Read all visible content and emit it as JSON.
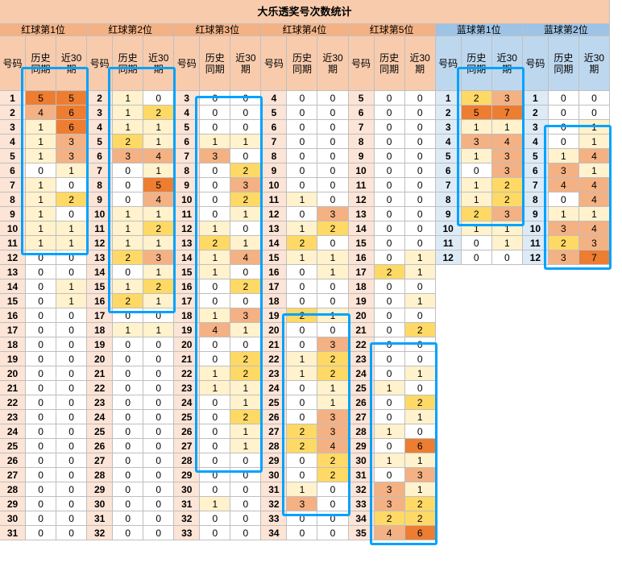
{
  "sheet": {
    "title": "大乐透奖号次数统计",
    "column_labels": {
      "number": "号码",
      "history": "历史\n同期",
      "recent": "近30\n期"
    }
  },
  "colors": {
    "border": "#bfbfbf",
    "title_bg": "#f8cbad",
    "red_group_header": "#f4b183",
    "red_sub_header": "#f8cbad",
    "red_number_bg": "#fce4d6",
    "blue_group_header": "#9dc3e6",
    "blue_sub_header": "#bdd7ee",
    "blue_number_bg": "#ddebf7",
    "heat": [
      "#ffffff",
      "#fff2cc",
      "#ffd966",
      "#f4b183",
      "#ed7d31"
    ],
    "highlight_box": "#00a2ff"
  },
  "groups": [
    {
      "name": "红球第1位",
      "kind": "red",
      "rows": [
        {
          "n": 1,
          "h": 5,
          "r": 5
        },
        {
          "n": 2,
          "h": 4,
          "r": 6
        },
        {
          "n": 3,
          "h": 1,
          "r": 6
        },
        {
          "n": 4,
          "h": 1,
          "r": 3
        },
        {
          "n": 5,
          "h": 1,
          "r": 3
        },
        {
          "n": 6,
          "h": 0,
          "r": 1
        },
        {
          "n": 7,
          "h": 1,
          "r": 0
        },
        {
          "n": 8,
          "h": 1,
          "r": 2
        },
        {
          "n": 9,
          "h": 1,
          "r": 0
        },
        {
          "n": 10,
          "h": 1,
          "r": 1
        },
        {
          "n": 11,
          "h": 1,
          "r": 1
        },
        {
          "n": 12,
          "h": 0,
          "r": 0
        },
        {
          "n": 13,
          "h": 0,
          "r": 0
        },
        {
          "n": 14,
          "h": 0,
          "r": 1
        },
        {
          "n": 15,
          "h": 0,
          "r": 1
        },
        {
          "n": 16,
          "h": 0,
          "r": 0
        },
        {
          "n": 17,
          "h": 0,
          "r": 0
        },
        {
          "n": 18,
          "h": 0,
          "r": 0
        },
        {
          "n": 19,
          "h": 0,
          "r": 0
        },
        {
          "n": 20,
          "h": 0,
          "r": 0
        },
        {
          "n": 21,
          "h": 0,
          "r": 0
        },
        {
          "n": 22,
          "h": 0,
          "r": 0
        },
        {
          "n": 23,
          "h": 0,
          "r": 0
        },
        {
          "n": 24,
          "h": 0,
          "r": 0
        },
        {
          "n": 25,
          "h": 0,
          "r": 0
        },
        {
          "n": 26,
          "h": 0,
          "r": 0
        },
        {
          "n": 27,
          "h": 0,
          "r": 0
        },
        {
          "n": 28,
          "h": 0,
          "r": 0
        },
        {
          "n": 29,
          "h": 0,
          "r": 0
        },
        {
          "n": 30,
          "h": 0,
          "r": 0
        },
        {
          "n": 31,
          "h": 0,
          "r": 0
        }
      ]
    },
    {
      "name": "红球第2位",
      "kind": "red",
      "rows": [
        {
          "n": 2,
          "h": 1,
          "r": 0
        },
        {
          "n": 3,
          "h": 1,
          "r": 2
        },
        {
          "n": 4,
          "h": 1,
          "r": 1
        },
        {
          "n": 5,
          "h": 2,
          "r": 1
        },
        {
          "n": 6,
          "h": 3,
          "r": 4
        },
        {
          "n": 7,
          "h": 0,
          "r": 1
        },
        {
          "n": 8,
          "h": 0,
          "r": 5
        },
        {
          "n": 9,
          "h": 0,
          "r": 4
        },
        {
          "n": 10,
          "h": 1,
          "r": 1
        },
        {
          "n": 11,
          "h": 1,
          "r": 2
        },
        {
          "n": 12,
          "h": 1,
          "r": 1
        },
        {
          "n": 13,
          "h": 2,
          "r": 3
        },
        {
          "n": 14,
          "h": 0,
          "r": 1
        },
        {
          "n": 15,
          "h": 1,
          "r": 2
        },
        {
          "n": 16,
          "h": 2,
          "r": 1
        },
        {
          "n": 17,
          "h": 0,
          "r": 0
        },
        {
          "n": 18,
          "h": 1,
          "r": 1
        },
        {
          "n": 19,
          "h": 0,
          "r": 0
        },
        {
          "n": 20,
          "h": 0,
          "r": 0
        },
        {
          "n": 21,
          "h": 0,
          "r": 0
        },
        {
          "n": 22,
          "h": 0,
          "r": 0
        },
        {
          "n": 23,
          "h": 0,
          "r": 0
        },
        {
          "n": 24,
          "h": 0,
          "r": 0
        },
        {
          "n": 25,
          "h": 0,
          "r": 0
        },
        {
          "n": 26,
          "h": 0,
          "r": 0
        },
        {
          "n": 27,
          "h": 0,
          "r": 0
        },
        {
          "n": 28,
          "h": 0,
          "r": 0
        },
        {
          "n": 29,
          "h": 0,
          "r": 0
        },
        {
          "n": 30,
          "h": 0,
          "r": 0
        },
        {
          "n": 31,
          "h": 0,
          "r": 0
        },
        {
          "n": 32,
          "h": 0,
          "r": 0
        }
      ]
    },
    {
      "name": "红球第3位",
      "kind": "red",
      "rows": [
        {
          "n": 3,
          "h": 0,
          "r": 0
        },
        {
          "n": 4,
          "h": 0,
          "r": 0
        },
        {
          "n": 5,
          "h": 0,
          "r": 0
        },
        {
          "n": 6,
          "h": 1,
          "r": 1
        },
        {
          "n": 7,
          "h": 3,
          "r": 0
        },
        {
          "n": 8,
          "h": 0,
          "r": 2
        },
        {
          "n": 9,
          "h": 0,
          "r": 3
        },
        {
          "n": 10,
          "h": 0,
          "r": 2
        },
        {
          "n": 11,
          "h": 0,
          "r": 1
        },
        {
          "n": 12,
          "h": 1,
          "r": 0
        },
        {
          "n": 13,
          "h": 2,
          "r": 1
        },
        {
          "n": 14,
          "h": 1,
          "r": 4
        },
        {
          "n": 15,
          "h": 1,
          "r": 0
        },
        {
          "n": 16,
          "h": 0,
          "r": 2
        },
        {
          "n": 17,
          "h": 0,
          "r": 0
        },
        {
          "n": 18,
          "h": 1,
          "r": 3
        },
        {
          "n": 19,
          "h": 4,
          "r": 1
        },
        {
          "n": 20,
          "h": 0,
          "r": 0
        },
        {
          "n": 21,
          "h": 0,
          "r": 2
        },
        {
          "n": 22,
          "h": 1,
          "r": 2
        },
        {
          "n": 23,
          "h": 1,
          "r": 1
        },
        {
          "n": 24,
          "h": 0,
          "r": 1
        },
        {
          "n": 25,
          "h": 0,
          "r": 2
        },
        {
          "n": 26,
          "h": 0,
          "r": 1
        },
        {
          "n": 27,
          "h": 0,
          "r": 1
        },
        {
          "n": 28,
          "h": 0,
          "r": 0
        },
        {
          "n": 29,
          "h": 0,
          "r": 0
        },
        {
          "n": 30,
          "h": 0,
          "r": 0
        },
        {
          "n": 31,
          "h": 1,
          "r": 0
        },
        {
          "n": 32,
          "h": 0,
          "r": 0
        },
        {
          "n": 33,
          "h": 0,
          "r": 0
        }
      ]
    },
    {
      "name": "红球第4位",
      "kind": "red",
      "rows": [
        {
          "n": 4,
          "h": 0,
          "r": 0
        },
        {
          "n": 5,
          "h": 0,
          "r": 0
        },
        {
          "n": 6,
          "h": 0,
          "r": 0
        },
        {
          "n": 7,
          "h": 0,
          "r": 0
        },
        {
          "n": 8,
          "h": 0,
          "r": 0
        },
        {
          "n": 9,
          "h": 0,
          "r": 0
        },
        {
          "n": 10,
          "h": 0,
          "r": 0
        },
        {
          "n": 11,
          "h": 1,
          "r": 0
        },
        {
          "n": 12,
          "h": 0,
          "r": 3
        },
        {
          "n": 13,
          "h": 1,
          "r": 2
        },
        {
          "n": 14,
          "h": 2,
          "r": 0
        },
        {
          "n": 15,
          "h": 1,
          "r": 1
        },
        {
          "n": 16,
          "h": 0,
          "r": 1
        },
        {
          "n": 17,
          "h": 0,
          "r": 0
        },
        {
          "n": 18,
          "h": 0,
          "r": 0
        },
        {
          "n": 19,
          "h": 2,
          "r": 1
        },
        {
          "n": 20,
          "h": 0,
          "r": 0
        },
        {
          "n": 21,
          "h": 0,
          "r": 3
        },
        {
          "n": 22,
          "h": 1,
          "r": 2
        },
        {
          "n": 23,
          "h": 1,
          "r": 2
        },
        {
          "n": 24,
          "h": 0,
          "r": 1
        },
        {
          "n": 25,
          "h": 0,
          "r": 1
        },
        {
          "n": 26,
          "h": 0,
          "r": 3
        },
        {
          "n": 27,
          "h": 2,
          "r": 3
        },
        {
          "n": 28,
          "h": 2,
          "r": 4
        },
        {
          "n": 29,
          "h": 0,
          "r": 2
        },
        {
          "n": 30,
          "h": 0,
          "r": 2
        },
        {
          "n": 31,
          "h": 1,
          "r": 0
        },
        {
          "n": 32,
          "h": 3,
          "r": 0
        },
        {
          "n": 33,
          "h": 0,
          "r": 0
        },
        {
          "n": 34,
          "h": 0,
          "r": 0
        }
      ]
    },
    {
      "name": "红球第5位",
      "kind": "red",
      "rows": [
        {
          "n": 5,
          "h": 0,
          "r": 0
        },
        {
          "n": 6,
          "h": 0,
          "r": 0
        },
        {
          "n": 7,
          "h": 0,
          "r": 0
        },
        {
          "n": 8,
          "h": 0,
          "r": 0
        },
        {
          "n": 9,
          "h": 0,
          "r": 0
        },
        {
          "n": 10,
          "h": 0,
          "r": 0
        },
        {
          "n": 11,
          "h": 0,
          "r": 0
        },
        {
          "n": 12,
          "h": 0,
          "r": 0
        },
        {
          "n": 13,
          "h": 0,
          "r": 0
        },
        {
          "n": 14,
          "h": 0,
          "r": 0
        },
        {
          "n": 15,
          "h": 0,
          "r": 0
        },
        {
          "n": 16,
          "h": 0,
          "r": 1
        },
        {
          "n": 17,
          "h": 2,
          "r": 1
        },
        {
          "n": 18,
          "h": 0,
          "r": 0
        },
        {
          "n": 19,
          "h": 0,
          "r": 1
        },
        {
          "n": 20,
          "h": 0,
          "r": 0
        },
        {
          "n": 21,
          "h": 0,
          "r": 2
        },
        {
          "n": 22,
          "h": 0,
          "r": 0
        },
        {
          "n": 23,
          "h": 0,
          "r": 0
        },
        {
          "n": 24,
          "h": 0,
          "r": 1
        },
        {
          "n": 25,
          "h": 1,
          "r": 0
        },
        {
          "n": 26,
          "h": 0,
          "r": 2
        },
        {
          "n": 27,
          "h": 0,
          "r": 1
        },
        {
          "n": 28,
          "h": 1,
          "r": 0
        },
        {
          "n": 29,
          "h": 0,
          "r": 6
        },
        {
          "n": 30,
          "h": 1,
          "r": 1
        },
        {
          "n": 31,
          "h": 0,
          "r": 3
        },
        {
          "n": 32,
          "h": 3,
          "r": 1
        },
        {
          "n": 33,
          "h": 3,
          "r": 2
        },
        {
          "n": 34,
          "h": 2,
          "r": 2
        },
        {
          "n": 35,
          "h": 4,
          "r": 6
        }
      ]
    },
    {
      "name": "蓝球第1位",
      "kind": "blue",
      "rows": [
        {
          "n": 1,
          "h": 2,
          "r": 3
        },
        {
          "n": 2,
          "h": 5,
          "r": 7
        },
        {
          "n": 3,
          "h": 1,
          "r": 1
        },
        {
          "n": 4,
          "h": 3,
          "r": 4
        },
        {
          "n": 5,
          "h": 1,
          "r": 3
        },
        {
          "n": 6,
          "h": 0,
          "r": 3
        },
        {
          "n": 7,
          "h": 1,
          "r": 2
        },
        {
          "n": 8,
          "h": 1,
          "r": 2
        },
        {
          "n": 9,
          "h": 2,
          "r": 3
        },
        {
          "n": 10,
          "h": 1,
          "r": 1
        },
        {
          "n": 11,
          "h": 0,
          "r": 1
        },
        {
          "n": 12,
          "h": 0,
          "r": 0
        }
      ]
    },
    {
      "name": "蓝球第2位",
      "kind": "blue",
      "rows": [
        {
          "n": 1,
          "h": 0,
          "r": 0
        },
        {
          "n": 2,
          "h": 0,
          "r": 0
        },
        {
          "n": 3,
          "h": 0,
          "r": 1
        },
        {
          "n": 4,
          "h": 0,
          "r": 1
        },
        {
          "n": 5,
          "h": 1,
          "r": 4
        },
        {
          "n": 6,
          "h": 3,
          "r": 1
        },
        {
          "n": 7,
          "h": 4,
          "r": 4
        },
        {
          "n": 8,
          "h": 0,
          "r": 4
        },
        {
          "n": 9,
          "h": 1,
          "r": 1
        },
        {
          "n": 10,
          "h": 3,
          "r": 4
        },
        {
          "n": 11,
          "h": 2,
          "r": 3
        },
        {
          "n": 12,
          "h": 3,
          "r": 7
        }
      ]
    }
  ],
  "highlight_boxes": [
    {
      "group": 0,
      "from_row": 0,
      "to_row": 10,
      "cols": "hr"
    },
    {
      "group": 1,
      "from_row": 0,
      "to_row": 14,
      "cols": "hr"
    },
    {
      "group": 2,
      "from_row": 2,
      "to_row": 25,
      "cols": "hr"
    },
    {
      "group": 3,
      "from_row": 17,
      "to_row": 28,
      "cols": "hr"
    },
    {
      "group": 4,
      "from_row": 19,
      "to_row": 30,
      "cols": "hr"
    },
    {
      "group": 5,
      "from_row": 0,
      "to_row": 8,
      "cols": "hr"
    },
    {
      "group": 6,
      "from_row": 4,
      "to_row": 11,
      "cols": "hr"
    }
  ]
}
